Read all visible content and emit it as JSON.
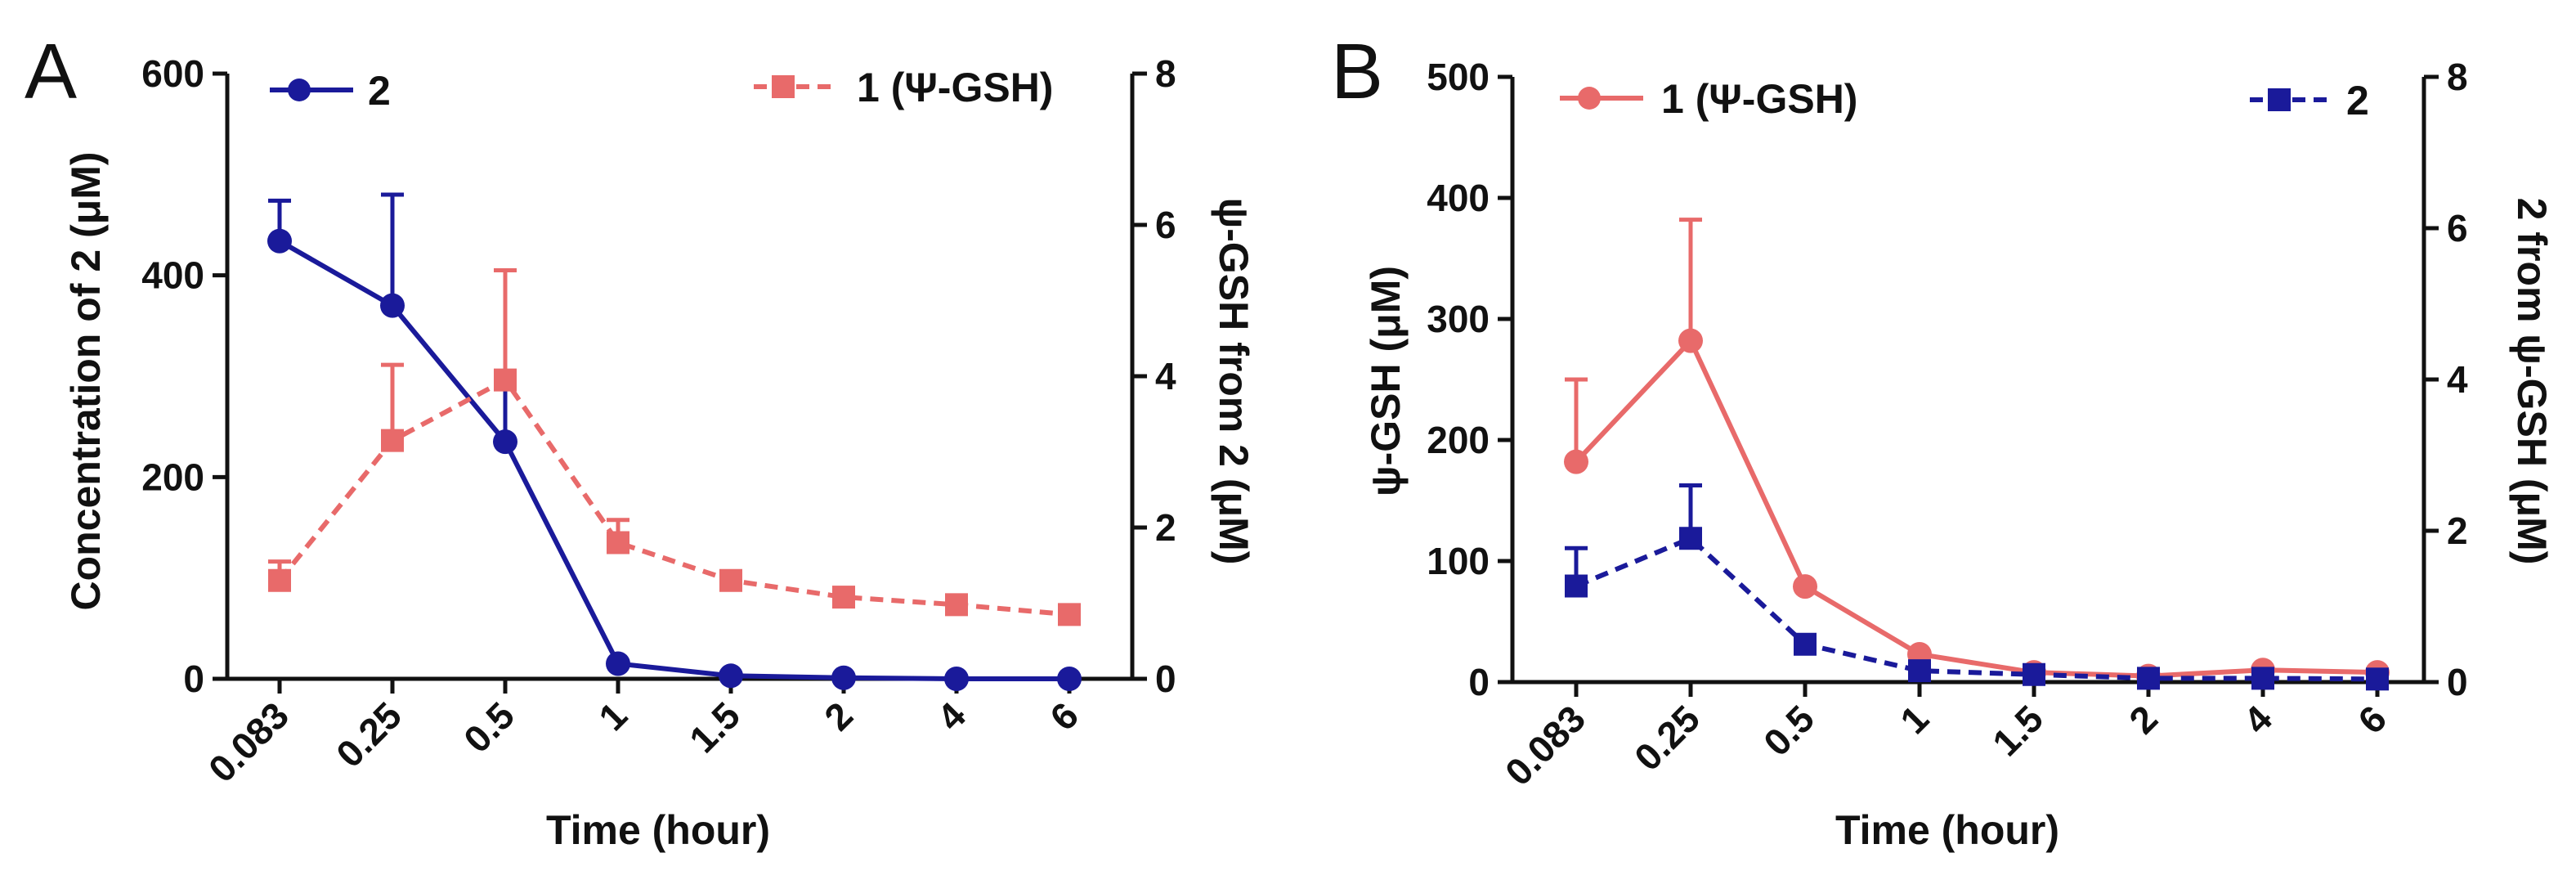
{
  "colors": {
    "navy": "#1a1a9a",
    "salmon": "#e86a6a",
    "axis": "#111111"
  },
  "chart_data": [
    {
      "type": "line",
      "panel_label": "A",
      "xlabel": "Time (hour)",
      "categories": [
        "0.083",
        "0.25",
        "0.5",
        "1",
        "1.5",
        "2",
        "4",
        "6"
      ],
      "y_left": {
        "label": "Concentration of 2 (μM)",
        "ylim": [
          0,
          600
        ],
        "ticks": [
          0,
          200,
          400,
          600
        ]
      },
      "y_right": {
        "label": "ψ-GSH from 2 (μM)",
        "ylim": [
          0,
          8
        ],
        "ticks": [
          0,
          2,
          4,
          6,
          8
        ]
      },
      "series": [
        {
          "name": "2",
          "axis": "left",
          "color": "#1a1a9a",
          "marker": "circle",
          "dash": false,
          "values": [
            434,
            370,
            235,
            15,
            3,
            1,
            0,
            0
          ],
          "errors": [
            40,
            110,
            60,
            0,
            0,
            0,
            0,
            0
          ],
          "legend": "top-left"
        },
        {
          "name": "1 (Ψ-GSH)",
          "axis": "right",
          "color": "#e86a6a",
          "marker": "square",
          "dash": true,
          "values": [
            1.3,
            3.15,
            3.95,
            1.8,
            1.3,
            1.08,
            0.98,
            0.85
          ],
          "errors": [
            0.25,
            1.0,
            1.45,
            0.3,
            0,
            0,
            0,
            0
          ],
          "legend": "top-right"
        }
      ]
    },
    {
      "type": "line",
      "panel_label": "B",
      "xlabel": "Time (hour)",
      "categories": [
        "0.083",
        "0.25",
        "0.5",
        "1",
        "1.5",
        "2",
        "4",
        "6"
      ],
      "y_left": {
        "label": "ψ-GSH (μM)",
        "ylim": [
          0,
          500
        ],
        "ticks": [
          0,
          100,
          200,
          300,
          400,
          500
        ]
      },
      "y_right": {
        "label": "2 from ψ-GSH (μM)",
        "ylim": [
          0,
          8
        ],
        "ticks": [
          0,
          2,
          4,
          6,
          8
        ]
      },
      "series": [
        {
          "name": "1 (Ψ-GSH)",
          "axis": "left",
          "color": "#e86a6a",
          "marker": "circle",
          "dash": false,
          "values": [
            182,
            282,
            79,
            23,
            8,
            5,
            10,
            8
          ],
          "errors": [
            68,
            100,
            0,
            0,
            0,
            0,
            0,
            0
          ],
          "legend": "top-left"
        },
        {
          "name": "2",
          "axis": "right",
          "color": "#1a1a9a",
          "marker": "square",
          "dash": true,
          "values": [
            1.27,
            1.9,
            0.5,
            0.15,
            0.1,
            0.05,
            0.05,
            0.04
          ],
          "errors": [
            0.5,
            0.7,
            0,
            0,
            0,
            0,
            0,
            0
          ],
          "legend": "top-right"
        }
      ]
    }
  ]
}
